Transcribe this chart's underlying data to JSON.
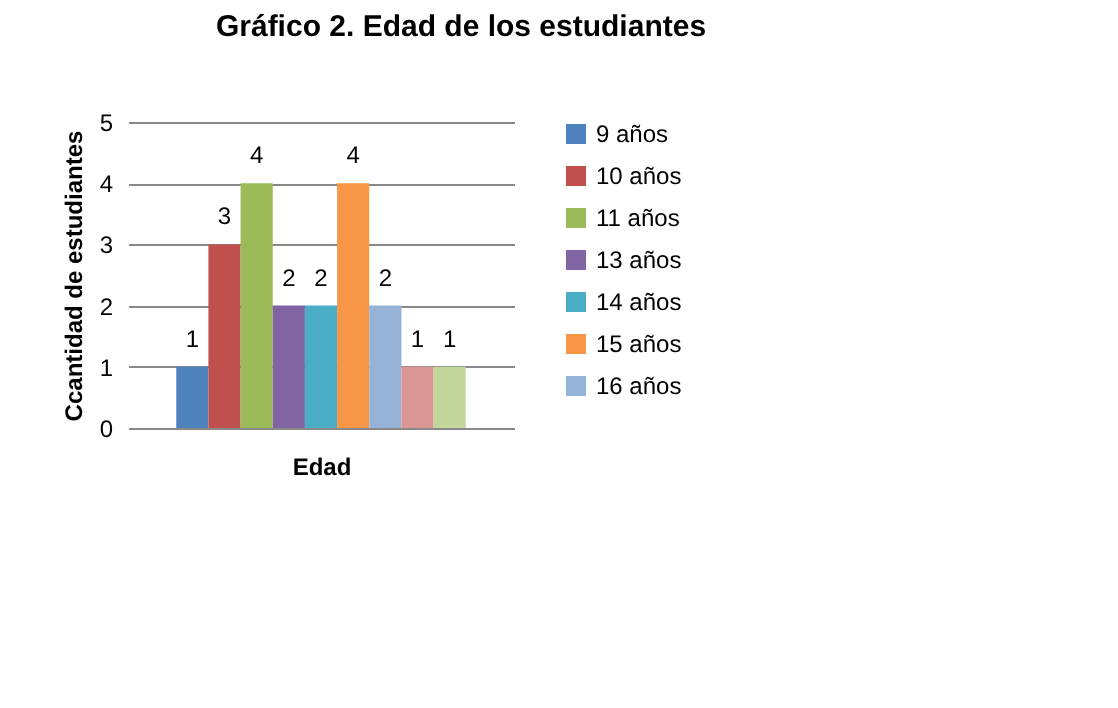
{
  "chart_data": {
    "type": "bar",
    "title": "Gráfico 2. Edad de los estudiantes",
    "xlabel": "Edad",
    "ylabel": "Ccantidad de estudiantes",
    "categories": [
      null
    ],
    "series": [
      {
        "name": "9 años",
        "color": "#4f81bd",
        "values": [
          1
        ]
      },
      {
        "name": "10 años",
        "color": "#c0504d",
        "values": [
          3
        ]
      },
      {
        "name": "11 años",
        "color": "#9bbb59",
        "values": [
          4
        ]
      },
      {
        "name": "13 años",
        "color": "#8064a2",
        "values": [
          2
        ]
      },
      {
        "name": "14 años",
        "color": "#4bacc6",
        "values": [
          2
        ]
      },
      {
        "name": "15 años",
        "color": "#f79646",
        "values": [
          4
        ]
      },
      {
        "name": "16 años",
        "color": "#95b3d7",
        "values": [
          2
        ]
      },
      {
        "color": "#d99694",
        "values": [
          1
        ]
      },
      {
        "color": "#c3d69b",
        "values": [
          1
        ]
      }
    ],
    "ylim": [
      0,
      5
    ],
    "yticks": [
      0,
      1,
      2,
      3,
      4,
      5
    ],
    "grid": "y",
    "legend": "right",
    "data_labels": true
  }
}
